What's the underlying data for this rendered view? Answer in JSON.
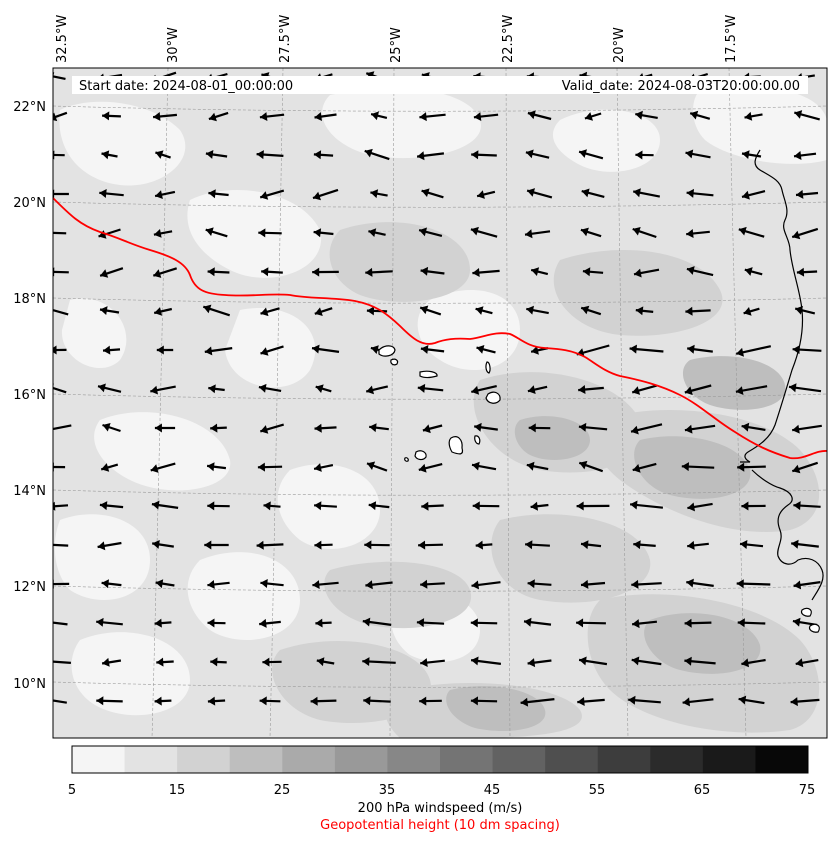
{
  "map": {
    "start_label": "Start date: 2024-08-01_00:00:00",
    "valid_label": "Valid_date: 2024-08-03T20:00:00.00",
    "lon_labels": [
      "32.5°W",
      "30°W",
      "27.5°W",
      "25°W",
      "22.5°W",
      "20°W",
      "17.5°W"
    ],
    "lat_labels": [
      "22°N",
      "20°N",
      "18°N",
      "16°N",
      "14°N",
      "12°N",
      "10°N"
    ],
    "contour_color": "#ff0000",
    "coast_color": "#000000"
  },
  "colorbar": {
    "levels": [
      5,
      10,
      15,
      20,
      25,
      30,
      35,
      40,
      45,
      50,
      55,
      60,
      65,
      70,
      75
    ],
    "tick_labels": [
      "5",
      "15",
      "25",
      "35",
      "45",
      "55",
      "65",
      "75"
    ],
    "colors": [
      "#f5f5f5",
      "#e3e3e3",
      "#d2d2d2",
      "#bebebe",
      "#aaaaaa",
      "#999999",
      "#878787",
      "#747474",
      "#626262",
      "#4f4f4f",
      "#3d3d3d",
      "#2b2b2b",
      "#1a1a1a",
      "#080808"
    ],
    "title": "200 hPa windspeed (m/s)"
  },
  "contour_caption": "Geopotential height (10 dm spacing)"
}
